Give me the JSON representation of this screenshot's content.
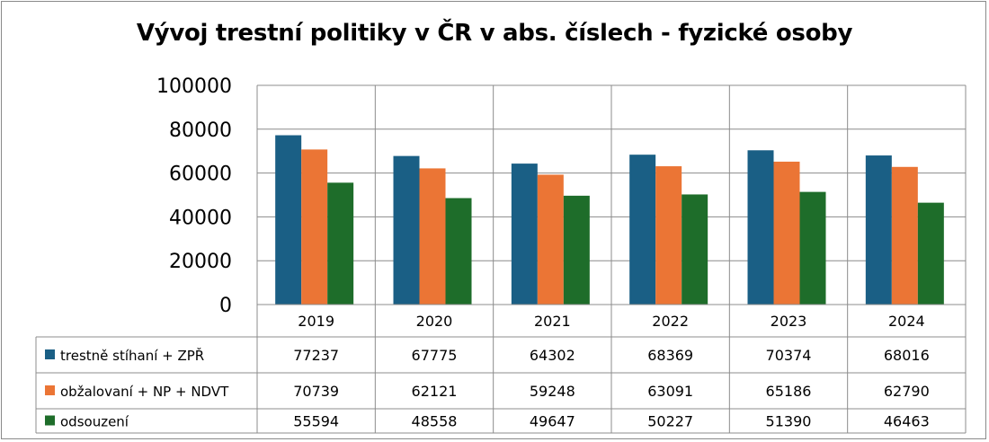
{
  "chart_data": {
    "type": "bar",
    "title": "Vývoj trestní politiky v ČR v abs. číslech - fyzické osoby",
    "categories": [
      "2019",
      "2020",
      "2021",
      "2022",
      "2023",
      "2024"
    ],
    "series": [
      {
        "name": "trestně stíhaní + ZPŘ",
        "color": "#1a5f85",
        "values": [
          77237,
          67775,
          64302,
          68369,
          70374,
          68016
        ]
      },
      {
        "name": "obžalovaní + NP + NDVT",
        "color": "#eb7535",
        "values": [
          70739,
          62121,
          59248,
          63091,
          65186,
          62790
        ]
      },
      {
        "name": "odsouzení",
        "color": "#1e6d2a",
        "values": [
          55594,
          48558,
          49647,
          50227,
          51390,
          46463
        ]
      }
    ],
    "ylim": [
      0,
      100000
    ],
    "yticks": [
      "0",
      "20000",
      "40000",
      "60000",
      "80000",
      "100000"
    ],
    "grid": true,
    "legend": "data-table"
  }
}
